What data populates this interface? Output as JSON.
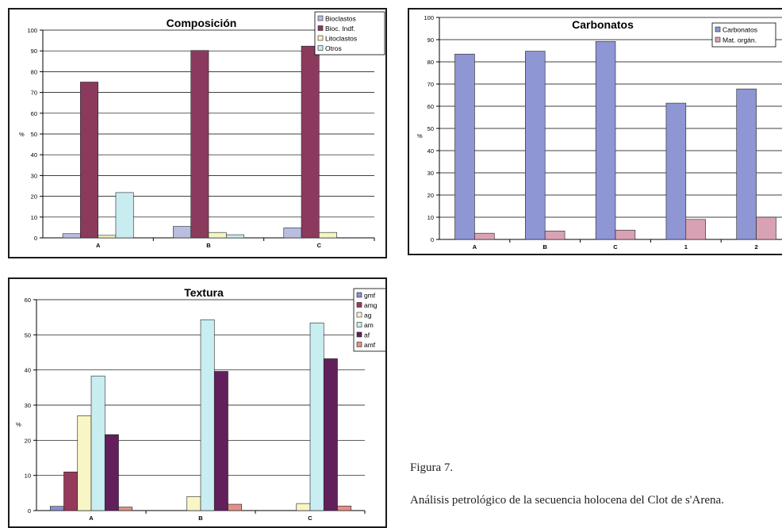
{
  "caption": {
    "figure": "Figura 7.",
    "text": "Análisis petrológico de la secuencia holocena del Clot de s'Arena."
  },
  "colors": {
    "bioclastos": "#b9bde0",
    "bioc_indf": "#8b3a5e",
    "litoclastos": "#f5f5c4",
    "otros": "#c9ecf0",
    "carbonatos": "#8f96d4",
    "mat_organ": "#d9a2b4",
    "gmf": "#8a90cc",
    "amg": "#963a5c",
    "ag": "#f8f6c6",
    "am": "#c9eef2",
    "af": "#621f5c",
    "amf": "#e58f86"
  },
  "chart_data": [
    {
      "id": "comp",
      "type": "bar",
      "title": "Composición",
      "ylabel": "%",
      "xlabel": "",
      "ylim": [
        0,
        100
      ],
      "yticks": [
        0,
        10,
        20,
        30,
        40,
        50,
        60,
        70,
        80,
        90,
        100
      ],
      "grid": true,
      "legend": "top-right",
      "categories": [
        "A",
        "B",
        "C"
      ],
      "series": [
        {
          "name": "Bioclastos",
          "color": "#b9bde0",
          "values": [
            2,
            5.5,
            4.8
          ]
        },
        {
          "name": "Bioc. Indf.",
          "color": "#8b3a5e",
          "values": [
            75,
            90.2,
            92.3
          ]
        },
        {
          "name": "Litoclastos",
          "color": "#f5f5c4",
          "values": [
            1.2,
            2.6,
            2.6
          ]
        },
        {
          "name": "Otros",
          "color": "#c9ecf0",
          "values": [
            21.8,
            1.5,
            0
          ]
        }
      ]
    },
    {
      "id": "carb",
      "type": "bar",
      "title": "Carbonatos",
      "ylabel": "%",
      "xlabel": "",
      "ylim": [
        0,
        100
      ],
      "yticks": [
        0,
        10,
        20,
        30,
        40,
        50,
        60,
        70,
        80,
        90,
        100
      ],
      "grid": true,
      "legend": "top-right",
      "categories": [
        "A",
        "B",
        "C",
        "1",
        "2"
      ],
      "series": [
        {
          "name": "Carbonatos",
          "color": "#8f96d4",
          "values": [
            83.5,
            84.8,
            89.2,
            61.4,
            67.8
          ]
        },
        {
          "name": "Mat. orgán.",
          "color": "#d9a2b4",
          "values": [
            2.8,
            3.8,
            4.2,
            9,
            10
          ]
        }
      ]
    },
    {
      "id": "text",
      "type": "bar",
      "title": "Textura",
      "ylabel": "%",
      "xlabel": "",
      "ylim": [
        0,
        60
      ],
      "yticks": [
        0,
        10,
        20,
        30,
        40,
        50,
        60
      ],
      "grid": true,
      "legend": "top-right",
      "categories": [
        "A",
        "B",
        "C"
      ],
      "series": [
        {
          "name": "gmf",
          "color": "#8a90cc",
          "values": [
            1.2,
            0,
            0
          ]
        },
        {
          "name": "amg",
          "color": "#963a5c",
          "values": [
            11,
            0,
            0
          ]
        },
        {
          "name": "ag",
          "color": "#f8f6c6",
          "values": [
            27,
            4,
            2
          ]
        },
        {
          "name": "am",
          "color": "#c9eef2",
          "values": [
            38.3,
            54.3,
            53.4
          ]
        },
        {
          "name": "af",
          "color": "#621f5c",
          "values": [
            21.6,
            39.6,
            43.2
          ]
        },
        {
          "name": "amf",
          "color": "#e58f86",
          "values": [
            1,
            1.8,
            1.3
          ]
        }
      ]
    }
  ]
}
